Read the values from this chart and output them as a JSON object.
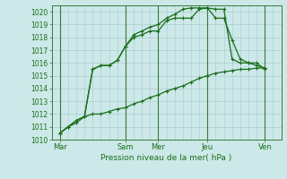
{
  "background_color": "#cce8e8",
  "grid_color": "#aacccc",
  "line_color": "#1a6e1a",
  "xlabel": "Pression niveau de la mer( hPa )",
  "ylim": [
    1010,
    1020.5
  ],
  "yticks": [
    1010,
    1011,
    1012,
    1013,
    1014,
    1015,
    1016,
    1017,
    1018,
    1019,
    1020
  ],
  "xlim": [
    0,
    14
  ],
  "xtick_labels": [
    "Mar",
    "Sam",
    "Mer",
    "Jeu",
    "Ven"
  ],
  "xtick_positions": [
    0.5,
    4.5,
    6.5,
    9.5,
    13.0
  ],
  "vline_positions": [
    0.5,
    4.5,
    6.5,
    9.5,
    13.0
  ],
  "s1x": [
    0.5,
    1.0,
    1.5,
    2.0,
    2.5,
    3.0,
    3.5,
    4.0,
    4.5,
    5.0,
    5.5,
    6.0,
    6.5,
    7.0,
    7.5,
    8.0,
    8.5,
    9.0,
    9.5,
    10.0,
    10.5,
    11.0,
    11.5,
    12.0,
    12.5,
    13.0
  ],
  "s1y": [
    1010.5,
    1011.0,
    1011.5,
    1011.8,
    1015.5,
    1015.8,
    1015.8,
    1016.2,
    1017.3,
    1018.0,
    1018.2,
    1018.5,
    1018.5,
    1019.3,
    1019.5,
    1019.5,
    1019.5,
    1020.2,
    1020.3,
    1020.2,
    1020.2,
    1016.3,
    1016.0,
    1016.0,
    1015.8,
    1015.6
  ],
  "s2x": [
    0.5,
    1.0,
    1.5,
    2.0,
    2.5,
    3.0,
    3.5,
    4.0,
    4.5,
    5.0,
    5.5,
    6.0,
    6.5,
    7.0,
    7.5,
    8.0,
    8.5,
    9.0,
    9.5,
    10.0,
    10.5,
    11.0,
    11.5,
    12.0,
    12.5,
    13.0
  ],
  "s2y": [
    1010.5,
    1011.0,
    1011.3,
    1011.8,
    1015.5,
    1015.8,
    1015.8,
    1016.2,
    1017.3,
    1018.2,
    1018.5,
    1018.8,
    1019.0,
    1019.5,
    1019.8,
    1020.2,
    1020.3,
    1020.3,
    1020.3,
    1019.5,
    1019.5,
    1017.8,
    1016.3,
    1016.0,
    1016.0,
    1015.5
  ],
  "s3x": [
    0.5,
    1.0,
    1.5,
    2.0,
    2.5,
    3.0,
    3.5,
    4.0,
    4.5,
    5.0,
    5.5,
    6.0,
    6.5,
    7.0,
    7.5,
    8.0,
    8.5,
    9.0,
    9.5,
    10.0,
    10.5,
    11.0,
    11.5,
    12.0,
    12.5,
    13.0
  ],
  "s3y": [
    1010.5,
    1011.0,
    1011.5,
    1011.8,
    1012.0,
    1012.0,
    1012.2,
    1012.4,
    1012.5,
    1012.8,
    1013.0,
    1013.3,
    1013.5,
    1013.8,
    1014.0,
    1014.2,
    1014.5,
    1014.8,
    1015.0,
    1015.2,
    1015.3,
    1015.4,
    1015.5,
    1015.5,
    1015.6,
    1015.6
  ],
  "markersize": 3.5,
  "linewidth": 0.9,
  "tick_fontsize": 5.5,
  "xlabel_fontsize": 6.5
}
